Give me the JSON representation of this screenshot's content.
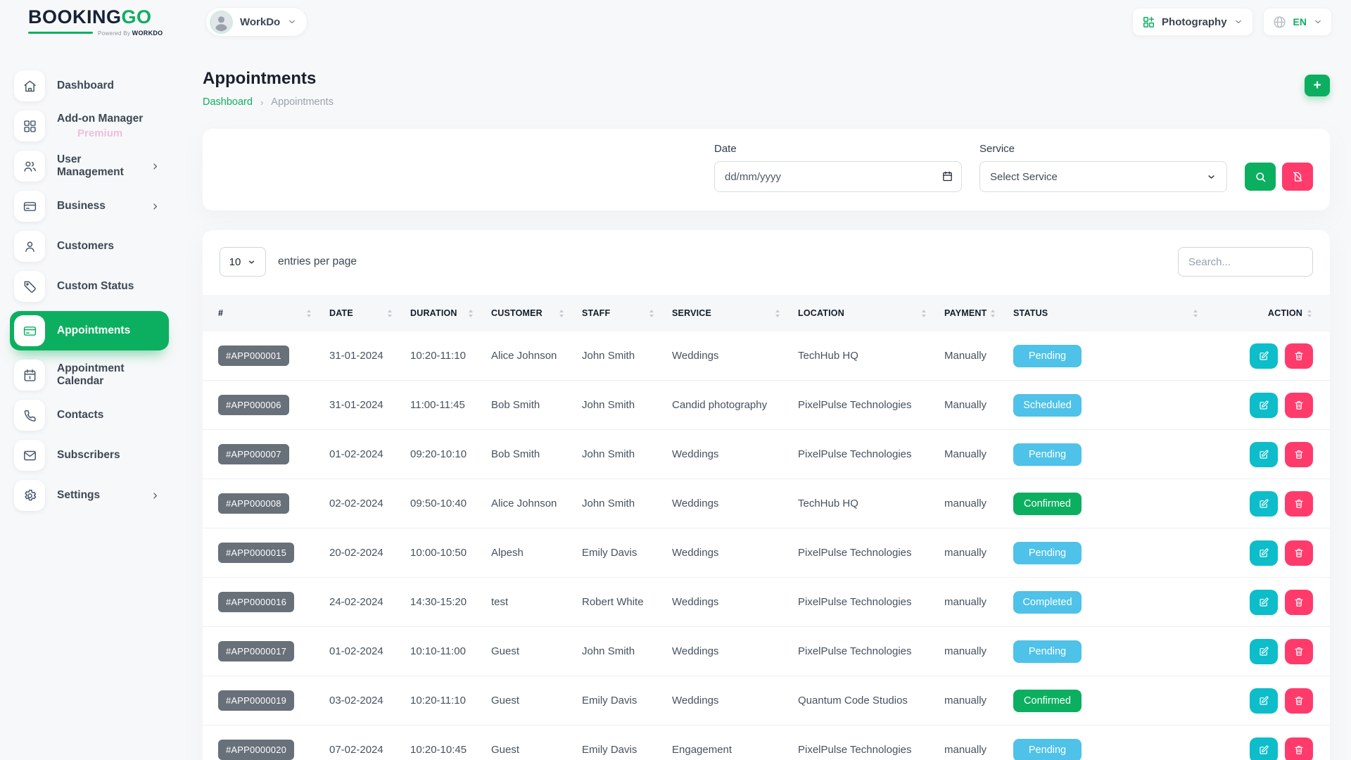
{
  "brand": {
    "name_a": "BOOKING",
    "name_b": "GO",
    "powered_by": "Powered By",
    "powered_brand": "WORKDO"
  },
  "topbar": {
    "workspace": "WorkDo",
    "module": "Photography",
    "language": "EN"
  },
  "sidebar": {
    "items": [
      {
        "label": "Dashboard",
        "icon": "home-icon"
      },
      {
        "label": "Add-on Manager",
        "badge": "Premium",
        "icon": "grid-icon"
      },
      {
        "label": "User Management",
        "icon": "users-icon",
        "expandable": true
      },
      {
        "label": "Business",
        "icon": "credit-card-icon",
        "expandable": true
      },
      {
        "label": "Customers",
        "icon": "customer-icon"
      },
      {
        "label": "Custom Status",
        "icon": "tag-icon"
      },
      {
        "label": "Appointments",
        "icon": "appointments-icon",
        "active": true
      },
      {
        "label": "Appointment Calendar",
        "icon": "calendar-icon"
      },
      {
        "label": "Contacts",
        "icon": "phone-icon"
      },
      {
        "label": "Subscribers",
        "icon": "mail-icon"
      },
      {
        "label": "Settings",
        "icon": "gear-icon",
        "expandable": true
      }
    ]
  },
  "page": {
    "title": "Appointments",
    "breadcrumb": [
      {
        "label": "Dashboard"
      },
      {
        "label": "Appointments"
      }
    ],
    "breadcrumb_separator": "›",
    "add_label": "+"
  },
  "filters": {
    "date_label": "Date",
    "date_placeholder": "dd/mm/yyyy",
    "service_label": "Service",
    "service_value": "Select Service"
  },
  "table": {
    "page_size": "10",
    "entries_label": "entries per page",
    "search_placeholder": "Search...",
    "columns": [
      "#",
      "DATE",
      "DURATION",
      "CUSTOMER",
      "STAFF",
      "SERVICE",
      "LOCATION",
      "PAYMENT",
      "STATUS",
      "ACTION"
    ],
    "rows": [
      {
        "id": "#APP000001",
        "date": "31-01-2024",
        "duration": "10:20-11:10",
        "customer": "Alice Johnson",
        "staff": "John Smith",
        "service": "Weddings",
        "location": "TechHub HQ",
        "payment": "Manually",
        "status": "Pending",
        "status_type": "info"
      },
      {
        "id": "#APP000006",
        "date": "31-01-2024",
        "duration": "11:00-11:45",
        "customer": "Bob Smith",
        "staff": "John Smith",
        "service": "Candid photography",
        "location": "PixelPulse Technologies",
        "payment": "Manually",
        "status": "Scheduled",
        "status_type": "info"
      },
      {
        "id": "#APP000007",
        "date": "01-02-2024",
        "duration": "09:20-10:10",
        "customer": "Bob Smith",
        "staff": "John Smith",
        "service": "Weddings",
        "location": "PixelPulse Technologies",
        "payment": "Manually",
        "status": "Pending",
        "status_type": "info"
      },
      {
        "id": "#APP000008",
        "date": "02-02-2024",
        "duration": "09:50-10:40",
        "customer": "Alice Johnson",
        "staff": "John Smith",
        "service": "Weddings",
        "location": "TechHub HQ",
        "payment": "manually",
        "status": "Confirmed",
        "status_type": "success"
      },
      {
        "id": "#APP0000015",
        "date": "20-02-2024",
        "duration": "10:00-10:50",
        "customer": "Alpesh",
        "staff": "Emily Davis",
        "service": "Weddings",
        "location": "PixelPulse Technologies",
        "payment": "manually",
        "status": "Pending",
        "status_type": "info"
      },
      {
        "id": "#APP0000016",
        "date": "24-02-2024",
        "duration": "14:30-15:20",
        "customer": "test",
        "staff": "Robert White",
        "service": "Weddings",
        "location": "PixelPulse Technologies",
        "payment": "manually",
        "status": "Completed",
        "status_type": "info"
      },
      {
        "id": "#APP0000017",
        "date": "01-02-2024",
        "duration": "10:10-11:00",
        "customer": "Guest",
        "staff": "John Smith",
        "service": "Weddings",
        "location": "PixelPulse Technologies",
        "payment": "manually",
        "status": "Pending",
        "status_type": "info"
      },
      {
        "id": "#APP0000019",
        "date": "03-02-2024",
        "duration": "10:20-11:10",
        "customer": "Guest",
        "staff": "Emily Davis",
        "service": "Weddings",
        "location": "Quantum Code Studios",
        "payment": "manually",
        "status": "Confirmed",
        "status_type": "success"
      },
      {
        "id": "#APP0000020",
        "date": "07-02-2024",
        "duration": "10:20-10:45",
        "customer": "Guest",
        "staff": "Emily Davis",
        "service": "Engagement",
        "location": "PixelPulse Technologies",
        "payment": "manually",
        "status": "Pending",
        "status_type": "info"
      }
    ]
  },
  "colors": {
    "primary_green": "#0CAF60",
    "status_info": "#4EC2E8",
    "status_success": "#0CAF60",
    "danger_pink": "#FF3B6C",
    "edit_teal": "#0DBDC9",
    "id_badge_gray": "#68707A"
  }
}
